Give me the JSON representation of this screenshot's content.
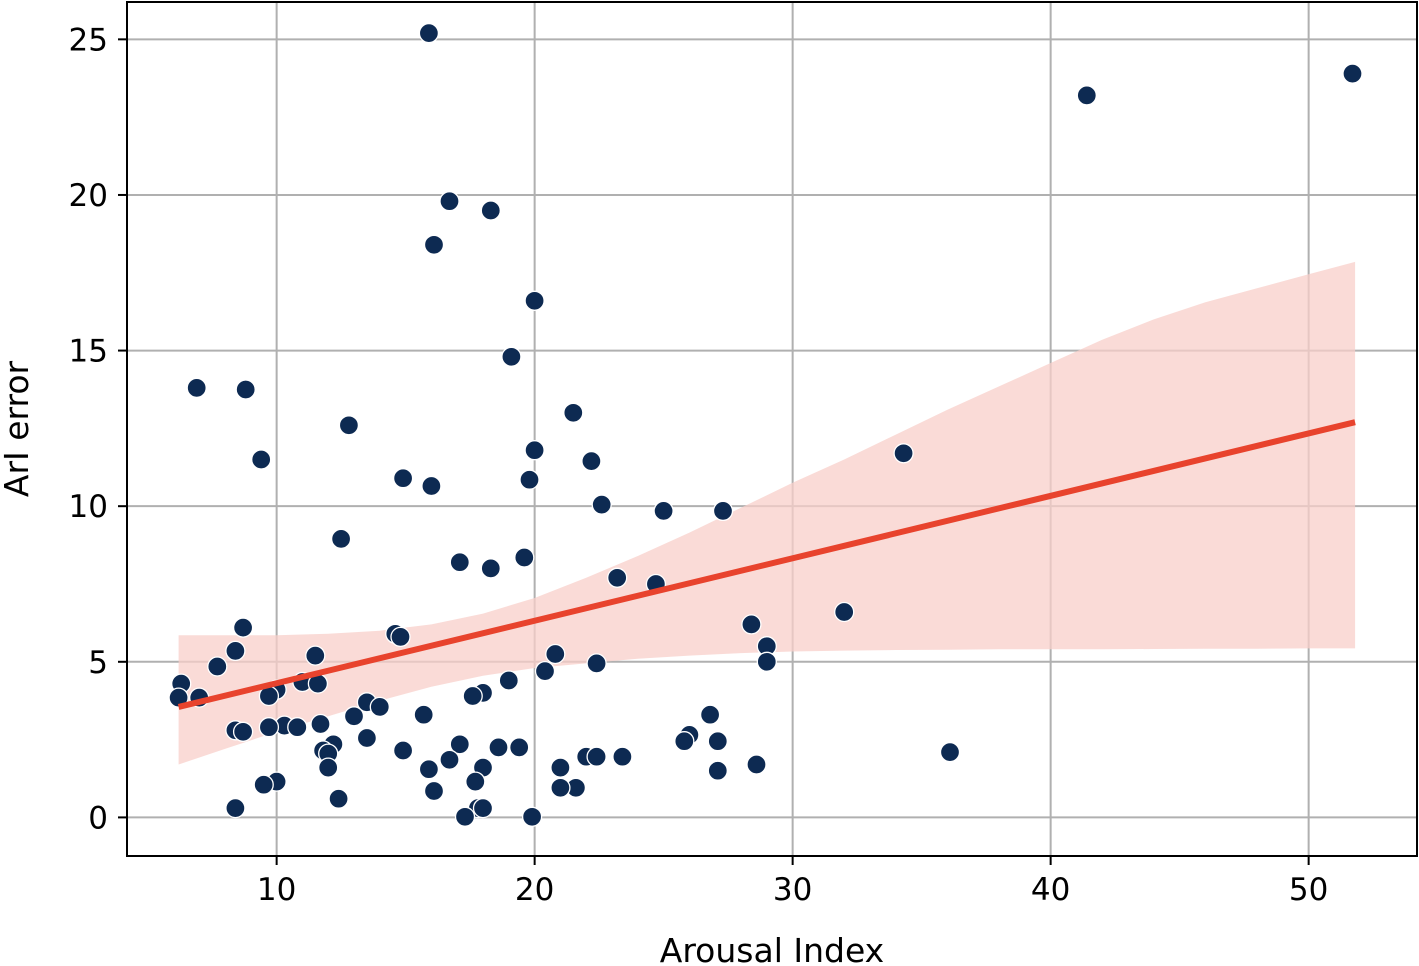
{
  "chart_data": {
    "type": "scatter",
    "xlabel": "Arousal Index",
    "ylabel": "ArI error",
    "xlim": [
      4.2,
      54.2
    ],
    "ylim": [
      -1.24,
      26.2
    ],
    "xticks": [
      10,
      20,
      30,
      40,
      50
    ],
    "yticks": [
      0,
      5,
      10,
      15,
      20,
      25
    ],
    "grid": true,
    "colors": {
      "points": "#0d2a52",
      "fit_line": "#e8432d",
      "confidence_band": "#f8cfc9",
      "grid": "#b0b0b0"
    },
    "points": [
      [
        15.9,
        25.2
      ],
      [
        41.4,
        23.2
      ],
      [
        51.7,
        23.9
      ],
      [
        16.7,
        19.8
      ],
      [
        18.3,
        19.5
      ],
      [
        16.1,
        18.4
      ],
      [
        20.0,
        16.6
      ],
      [
        19.1,
        14.8
      ],
      [
        6.9,
        13.8
      ],
      [
        8.8,
        13.75
      ],
      [
        21.5,
        13.0
      ],
      [
        12.8,
        12.6
      ],
      [
        34.3,
        11.7
      ],
      [
        9.4,
        11.5
      ],
      [
        20.0,
        11.8
      ],
      [
        22.2,
        11.45
      ],
      [
        14.9,
        10.9
      ],
      [
        19.8,
        10.85
      ],
      [
        16.0,
        10.65
      ],
      [
        22.6,
        10.05
      ],
      [
        25.0,
        9.85
      ],
      [
        27.3,
        9.85
      ],
      [
        12.5,
        8.95
      ],
      [
        19.6,
        8.35
      ],
      [
        17.1,
        8.2
      ],
      [
        18.3,
        8.0
      ],
      [
        23.2,
        7.7
      ],
      [
        24.7,
        7.5
      ],
      [
        32.0,
        6.6
      ],
      [
        28.4,
        6.2
      ],
      [
        8.7,
        6.1
      ],
      [
        14.6,
        5.9
      ],
      [
        14.8,
        5.8
      ],
      [
        29.0,
        5.5
      ],
      [
        8.4,
        5.35
      ],
      [
        20.8,
        5.25
      ],
      [
        11.5,
        5.2
      ],
      [
        29.0,
        5.0
      ],
      [
        22.4,
        4.95
      ],
      [
        7.7,
        4.85
      ],
      [
        20.4,
        4.7
      ],
      [
        6.3,
        4.3
      ],
      [
        11.0,
        4.35
      ],
      [
        11.6,
        4.3
      ],
      [
        19.0,
        4.4
      ],
      [
        10.0,
        4.1
      ],
      [
        9.7,
        3.9
      ],
      [
        18.0,
        4.0
      ],
      [
        17.6,
        3.9
      ],
      [
        6.2,
        3.85
      ],
      [
        7.0,
        3.85
      ],
      [
        13.5,
        3.7
      ],
      [
        14.0,
        3.55
      ],
      [
        13.0,
        3.25
      ],
      [
        15.7,
        3.3
      ],
      [
        26.8,
        3.3
      ],
      [
        11.7,
        3.0
      ],
      [
        10.3,
        2.95
      ],
      [
        9.7,
        2.9
      ],
      [
        10.8,
        2.9
      ],
      [
        8.4,
        2.8
      ],
      [
        8.7,
        2.75
      ],
      [
        26.0,
        2.65
      ],
      [
        13.5,
        2.55
      ],
      [
        25.8,
        2.45
      ],
      [
        27.1,
        2.45
      ],
      [
        12.2,
        2.35
      ],
      [
        17.1,
        2.35
      ],
      [
        18.6,
        2.25
      ],
      [
        19.4,
        2.25
      ],
      [
        14.9,
        2.15
      ],
      [
        11.8,
        2.15
      ],
      [
        12.0,
        2.05
      ],
      [
        36.1,
        2.1
      ],
      [
        22.0,
        1.95
      ],
      [
        22.4,
        1.95
      ],
      [
        23.4,
        1.95
      ],
      [
        16.7,
        1.85
      ],
      [
        28.6,
        1.7
      ],
      [
        21.0,
        1.6
      ],
      [
        18.0,
        1.6
      ],
      [
        15.9,
        1.55
      ],
      [
        12.0,
        1.6
      ],
      [
        27.1,
        1.5
      ],
      [
        17.7,
        1.15
      ],
      [
        10.0,
        1.15
      ],
      [
        9.5,
        1.05
      ],
      [
        21.6,
        0.95
      ],
      [
        21.0,
        0.95
      ],
      [
        16.1,
        0.85
      ],
      [
        12.4,
        0.6
      ],
      [
        17.8,
        0.3
      ],
      [
        18.0,
        0.3
      ],
      [
        8.4,
        0.3
      ],
      [
        17.3,
        0.02
      ],
      [
        19.9,
        0.02
      ]
    ],
    "regression": {
      "x": [
        6.2,
        51.8
      ],
      "y": [
        3.55,
        12.7
      ]
    },
    "confidence_band": {
      "x": [
        6.2,
        8,
        10,
        12,
        14,
        16,
        18,
        20,
        22,
        24,
        26,
        28,
        30,
        32,
        34,
        36,
        38,
        40,
        42,
        44,
        46,
        48,
        50,
        51.8
      ],
      "upper": [
        5.85,
        5.85,
        5.85,
        5.9,
        6.0,
        6.2,
        6.55,
        7.05,
        7.7,
        8.4,
        9.15,
        9.95,
        10.75,
        11.5,
        12.3,
        13.1,
        13.85,
        14.6,
        15.35,
        16.0,
        16.55,
        17.0,
        17.45,
        17.85
      ],
      "lower": [
        1.7,
        2.2,
        2.75,
        3.25,
        3.75,
        4.2,
        4.55,
        4.8,
        4.95,
        5.1,
        5.2,
        5.28,
        5.33,
        5.36,
        5.38,
        5.39,
        5.4,
        5.4,
        5.4,
        5.41,
        5.42,
        5.42,
        5.43,
        5.43
      ]
    }
  }
}
